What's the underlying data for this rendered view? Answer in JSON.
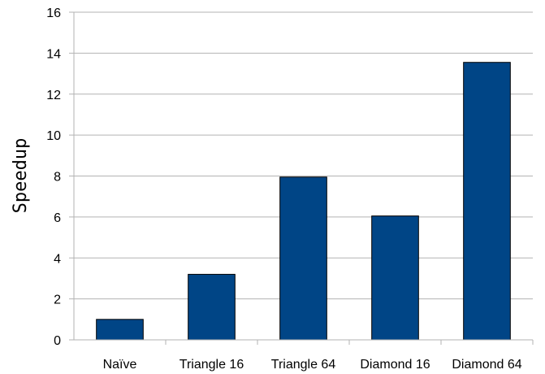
{
  "chart_data": {
    "type": "bar",
    "title": "",
    "xlabel": "",
    "ylabel": "Speedup",
    "categories": [
      "Naïve",
      "Triangle 16",
      "Triangle 64",
      "Diamond 16",
      "Diamond 64"
    ],
    "values": [
      1.0,
      3.2,
      7.95,
      6.05,
      13.55
    ],
    "ylim": [
      0,
      16
    ],
    "yticks": [
      0,
      2,
      4,
      6,
      8,
      10,
      12,
      14,
      16
    ],
    "grid": true,
    "legend": "none",
    "bar_color": "#004586",
    "grid_color": "#b3b3b3"
  }
}
